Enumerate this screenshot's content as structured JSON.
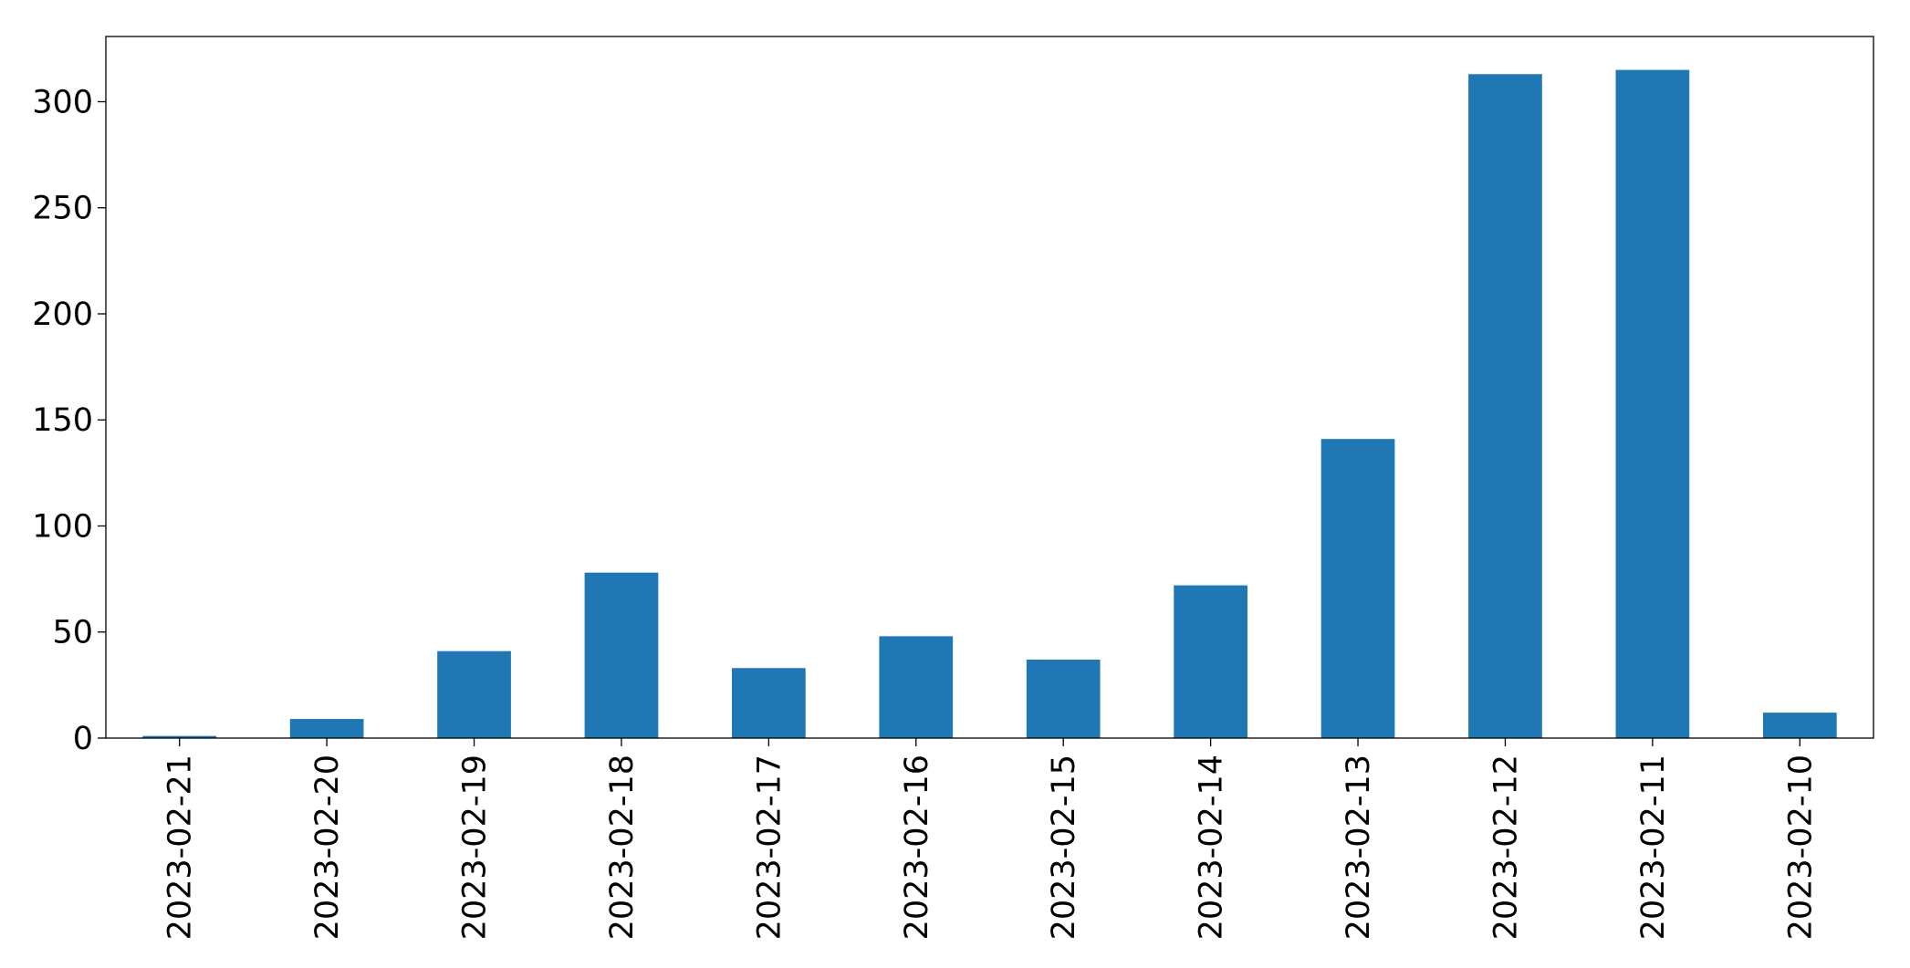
{
  "chart_data": {
    "type": "bar",
    "categories": [
      "2023-02-21",
      "2023-02-20",
      "2023-02-19",
      "2023-02-18",
      "2023-02-17",
      "2023-02-16",
      "2023-02-15",
      "2023-02-14",
      "2023-02-13",
      "2023-02-12",
      "2023-02-11",
      "2023-02-10"
    ],
    "values": [
      1,
      9,
      41,
      78,
      33,
      48,
      37,
      72,
      141,
      313,
      315,
      12
    ],
    "color": "#1f77b4",
    "ylim": [
      0,
      330.75
    ],
    "yticks": [
      0,
      50,
      100,
      150,
      200,
      250,
      300
    ],
    "grid": false
  }
}
